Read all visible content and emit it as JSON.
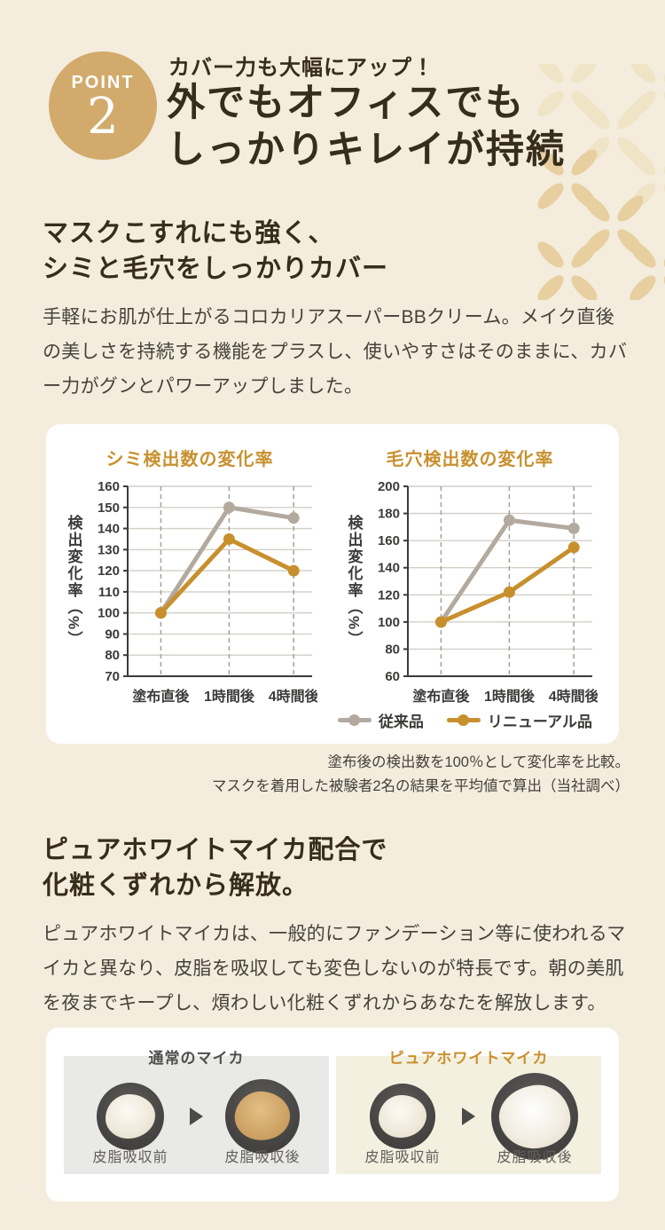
{
  "colors": {
    "background": "#f4edde",
    "badge_gold": "#d2aa6b",
    "heading_text": "#362d1a",
    "body_text": "#46423b",
    "accent_gold": "#c8912f",
    "series_gray": "#b4a99e",
    "series_gold": "#c8902d",
    "card_white": "#ffffff",
    "panel_gray": "#e9e9e7",
    "panel_cream": "#f4f0e0",
    "pattern_gold": "#e8cfa0",
    "pattern_light": "#f0e4c7"
  },
  "point_badge": {
    "label": "POINT",
    "number": "2"
  },
  "header": {
    "kicker": "カバー力も大幅にアップ！",
    "title_line1": "外でもオフィスでも",
    "title_line2": "しっかりキレイが持続"
  },
  "section1": {
    "heading_line1": "マスクこすれにも強く、",
    "heading_line2": "シミと毛穴をしっかりカバー",
    "body": "手軽にお肌が仕上がるコロカリアスーパーBBクリーム。メイク直後の美しさを持続する機能をプラスし、使いやすさはそのままに、カバー力がグンとパワーアップしました。"
  },
  "chart_data": [
    {
      "type": "line",
      "title": "シミ検出数の変化率",
      "ylabel": "検出変化率（%）",
      "categories": [
        "塗布直後",
        "1時間後",
        "4時間後"
      ],
      "ylim": [
        70,
        160
      ],
      "ytick_step": 10,
      "grid": "horizontal solid gray lines at each tick, vertical dashed lines at each category",
      "series": [
        {
          "name": "従来品",
          "color": "#b4a99e",
          "values": [
            100,
            150,
            145
          ]
        },
        {
          "name": "リニューアル品",
          "color": "#c8902d",
          "values": [
            100,
            135,
            120
          ]
        }
      ]
    },
    {
      "type": "line",
      "title": "毛穴検出数の変化率",
      "ylabel": "検出変化率（%）",
      "categories": [
        "塗布直後",
        "1時間後",
        "4時間後"
      ],
      "ylim": [
        60,
        200
      ],
      "ytick_step": 20,
      "grid": "horizontal solid gray lines at each tick, vertical dashed lines at each category",
      "series": [
        {
          "name": "従来品",
          "color": "#b4a99e",
          "values": [
            100,
            175,
            169
          ]
        },
        {
          "name": "リニューアル品",
          "color": "#c8902d",
          "values": [
            100,
            122,
            155
          ]
        }
      ]
    }
  ],
  "legend": {
    "position": "below charts, right aligned",
    "items": [
      {
        "label": "従来品",
        "color": "#b4a99e"
      },
      {
        "label": "リニューアル品",
        "color": "#c8902d"
      }
    ]
  },
  "chart_caption": {
    "line1": "塗布後の検出数を100％として変化率を比較。",
    "line2": "マスクを着用した被験者2名の結果を平均値で算出（当社調べ）"
  },
  "section2": {
    "heading_line1": "ピュアホワイトマイカ配合で",
    "heading_line2": "化粧くずれから解放。",
    "body": "ピュアホワイトマイカは、一般的にファンデーション等に使われるマイカと異なり、皮脂を吸収しても変色しないのが特長です。朝の美肌を夜までキープし、煩わしい化粧くずれからあなたを解放します。"
  },
  "comparison": {
    "left_panel": {
      "title": "通常のマイカ",
      "before_label": "皮脂吸収前",
      "after_label": "皮脂吸収後",
      "before_powder": "white powder on dark dish",
      "after_powder": "tan discolored powder on dark dish"
    },
    "right_panel": {
      "title": "ピュアホワイトマイカ",
      "before_label": "皮脂吸収前",
      "after_label": "皮脂吸収後",
      "before_powder": "white powder on dark dish",
      "after_powder": "white powder (unchanged) on dark dish"
    }
  }
}
